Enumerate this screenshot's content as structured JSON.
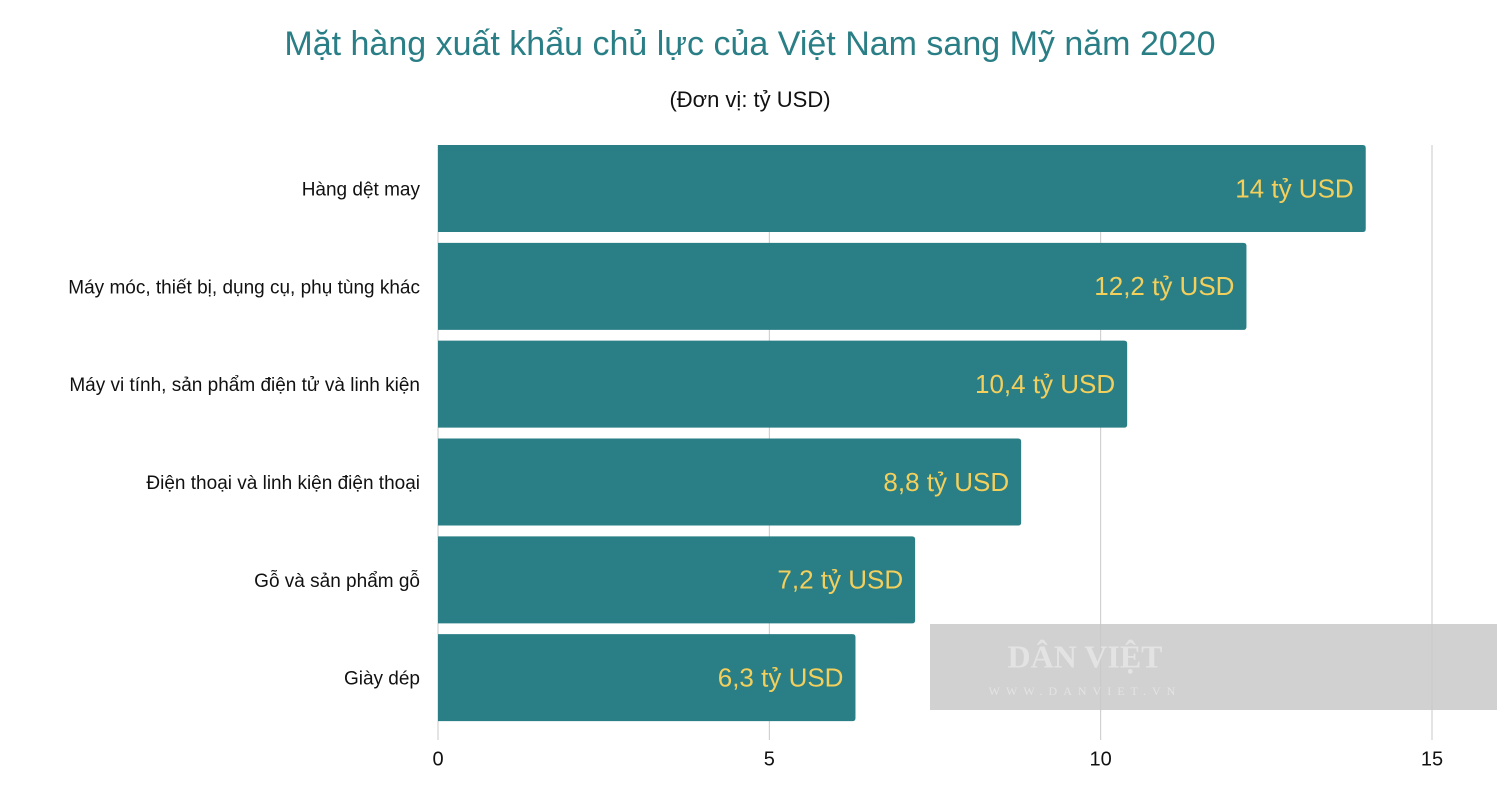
{
  "chart_data": {
    "type": "bar",
    "orientation": "horizontal",
    "title": "Mặt hàng xuất khẩu chủ lực của Việt Nam sang Mỹ năm 2020",
    "subtitle": "(Đơn vị: tỷ USD)",
    "categories": [
      "Hàng dệt may",
      "Máy móc, thiết bị, dụng cụ, phụ tùng khác",
      "Máy vi tính, sản phẩm điện tử và linh kiện",
      "Điện thoại và linh kiện điện thoại",
      "Gỗ và sản phẩm gỗ",
      "Giày dép"
    ],
    "values": [
      14,
      12.2,
      10.4,
      8.8,
      7.2,
      6.3
    ],
    "value_labels": [
      "14 tỷ USD",
      "12,2 tỷ USD",
      "10,4 tỷ USD",
      "8,8 tỷ USD",
      "7,2 tỷ USD",
      "6,3 tỷ USD"
    ],
    "color": "#2a7f86",
    "label_color": "#f3cf5c",
    "xlim": [
      0,
      15
    ],
    "xticks": [
      0,
      5,
      10,
      15
    ],
    "grid": true
  },
  "watermark": {
    "name": "DÂN VIỆT",
    "url": "WWW.DANVIET.VN"
  }
}
